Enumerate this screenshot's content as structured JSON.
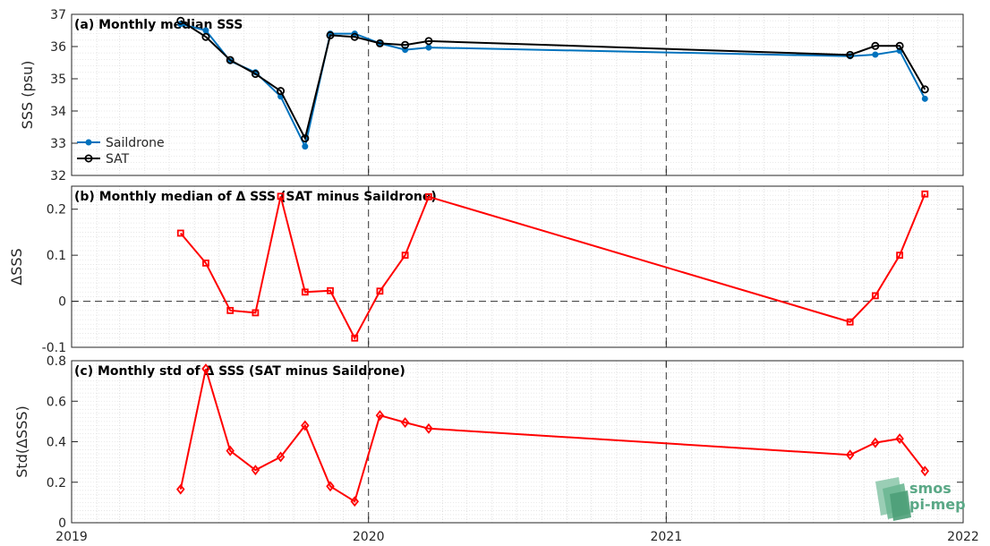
{
  "chart_data": [
    {
      "type": "line",
      "title": "(a) Monthly median SSS",
      "ylabel": "SSS (psu)",
      "xlabel": "",
      "ylim": [
        32,
        37
      ],
      "yticks": [
        32,
        33,
        34,
        35,
        36,
        37
      ],
      "xlim": [
        "2019-01-01",
        "2022-01-01"
      ],
      "xticks": [
        "2019",
        "2020",
        "2021",
        "2022"
      ],
      "grid": "minor-dotted",
      "legend": "lower-left",
      "x": [
        "2019-05-15",
        "2019-06-15",
        "2019-07-15",
        "2019-08-15",
        "2019-09-15",
        "2019-10-15",
        "2019-11-15",
        "2019-12-15",
        "2020-01-15",
        "2020-02-15",
        "2020-03-15",
        "2021-08-15",
        "2021-09-15",
        "2021-10-15",
        "2021-11-15"
      ],
      "series": [
        {
          "name": "Saildrone",
          "color": "#0072BD",
          "marker": "dot",
          "values": [
            36.7,
            36.5,
            35.55,
            35.2,
            34.45,
            32.9,
            36.4,
            36.4,
            36.1,
            35.9,
            35.97,
            35.7,
            35.75,
            35.87,
            34.38
          ]
        },
        {
          "name": "SAT",
          "color": "#000000",
          "marker": "circle",
          "values": [
            36.8,
            36.3,
            35.58,
            35.15,
            34.62,
            33.15,
            36.35,
            36.3,
            36.1,
            36.05,
            36.17,
            35.74,
            36.02,
            36.02,
            34.67
          ]
        }
      ]
    },
    {
      "type": "line",
      "title": "(b) Monthly median of Δ SSS (SAT minus Saildrone)",
      "ylabel": "ΔSSS",
      "xlabel": "",
      "ylim": [
        -0.1,
        0.25
      ],
      "yticks": [
        -0.1,
        0,
        0.1,
        0.2
      ],
      "ytick_labels": [
        "-0.1",
        "0",
        "0.1",
        "0.2"
      ],
      "xlim": [
        "2019-01-01",
        "2022-01-01"
      ],
      "zero_line": true,
      "grid": "minor-dotted",
      "x": [
        "2019-05-15",
        "2019-06-15",
        "2019-07-15",
        "2019-08-15",
        "2019-09-15",
        "2019-10-15",
        "2019-11-15",
        "2019-12-15",
        "2020-01-15",
        "2020-02-15",
        "2020-03-15",
        "2021-08-15",
        "2021-09-15",
        "2021-10-15",
        "2021-11-15"
      ],
      "series": [
        {
          "color": "#FF0000",
          "marker": "square",
          "values": [
            0.148,
            0.083,
            -0.02,
            -0.025,
            0.228,
            0.02,
            0.023,
            -0.08,
            0.022,
            0.1,
            0.227,
            -0.045,
            0.012,
            0.1,
            0.233
          ]
        }
      ]
    },
    {
      "type": "line",
      "title": "(c) Monthly std of Δ SSS (SAT minus Saildrone)",
      "ylabel": "Std(ΔSSS)",
      "xlabel": "",
      "ylim": [
        0,
        0.8
      ],
      "yticks": [
        0,
        0.2,
        0.4,
        0.6,
        0.8
      ],
      "ytick_labels": [
        "0",
        "0.2",
        "0.4",
        "0.6",
        "0.8"
      ],
      "xlim": [
        "2019-01-01",
        "2022-01-01"
      ],
      "xticks": [
        "2019",
        "2020",
        "2021",
        "2022"
      ],
      "grid": "minor-dotted",
      "x": [
        "2019-05-15",
        "2019-06-15",
        "2019-07-15",
        "2019-08-15",
        "2019-09-15",
        "2019-10-15",
        "2019-11-15",
        "2019-12-15",
        "2020-01-15",
        "2020-02-15",
        "2020-03-15",
        "2021-08-15",
        "2021-09-15",
        "2021-10-15",
        "2021-11-15"
      ],
      "series": [
        {
          "color": "#FF0000",
          "marker": "diamond",
          "values": [
            0.165,
            0.76,
            0.355,
            0.26,
            0.325,
            0.48,
            0.18,
            0.105,
            0.53,
            0.495,
            0.465,
            0.335,
            0.395,
            0.415,
            0.255
          ]
        }
      ]
    }
  ],
  "logo": {
    "line1": "smos",
    "line2": "pi-mep",
    "color": "#5aa886"
  }
}
